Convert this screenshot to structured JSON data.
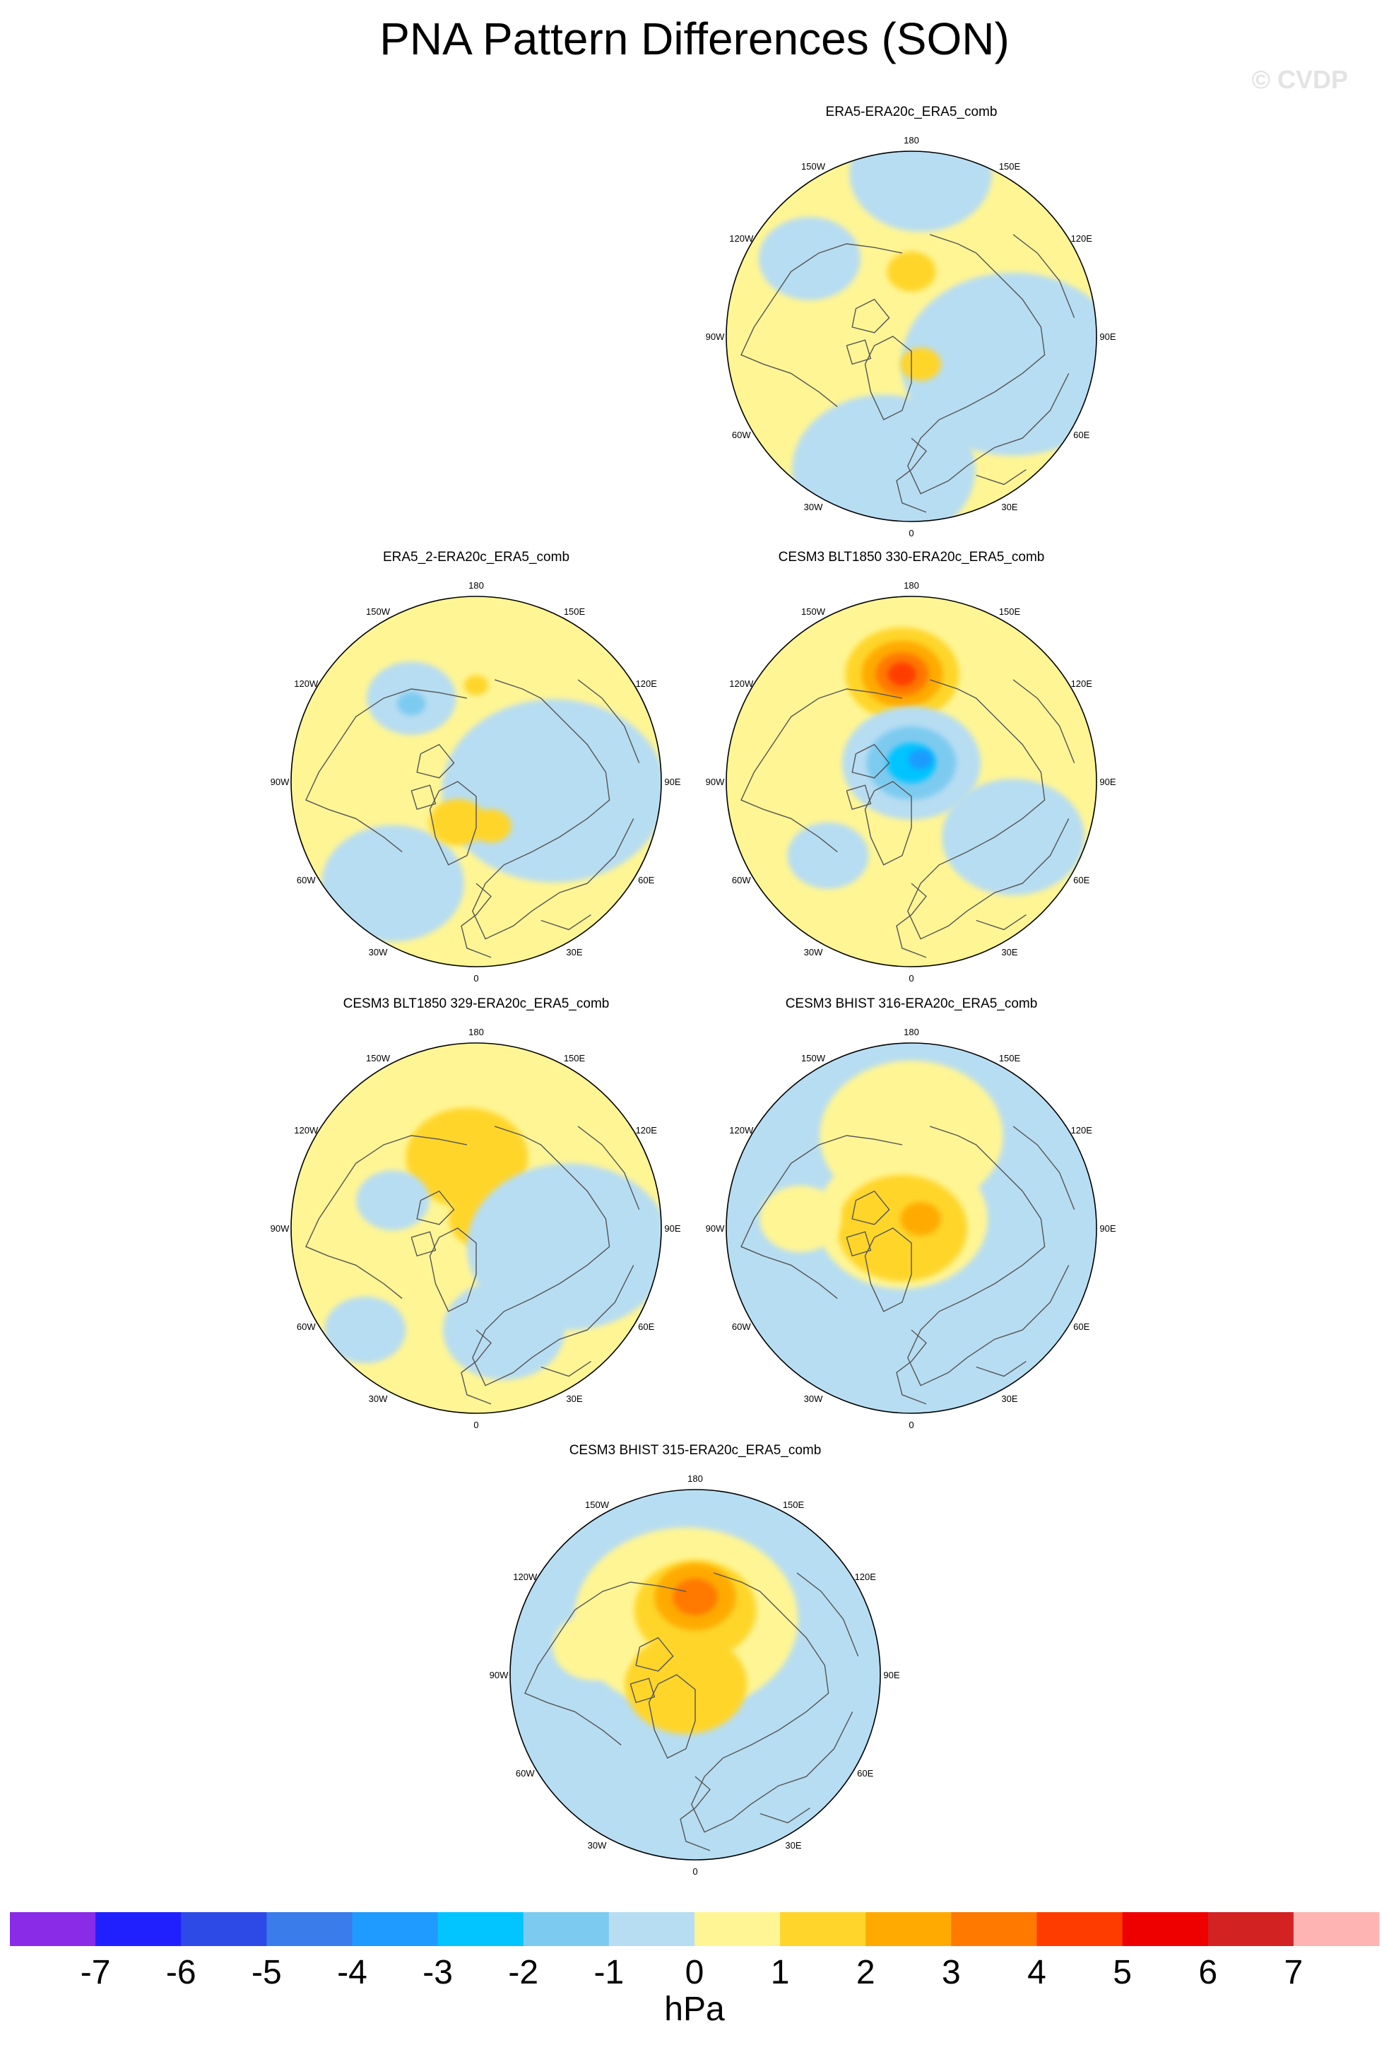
{
  "title": "PNA Pattern Differences (SON)",
  "watermark": "© CVDP",
  "colorbar": {
    "labels": [
      "-7",
      "-6",
      "-5",
      "-4",
      "-3",
      "-2",
      "-1",
      "0",
      "1",
      "2",
      "3",
      "4",
      "5",
      "6",
      "7"
    ],
    "units": "hPa",
    "colors": [
      "#8a2be8",
      "#2020ff",
      "#2d4ae6",
      "#3a7cea",
      "#1f9bff",
      "#02c4ff",
      "#7dcaf0",
      "#b7ddf2",
      "#fff594",
      "#ffd52c",
      "#ffaa00",
      "#ff7800",
      "#ff3c00",
      "#ee0000",
      "#d22222",
      "#ffb4b4"
    ]
  },
  "panels": [
    {
      "title": "ERA5-ERA20c_ERA5_comb"
    },
    {
      "title": "ERA5_2-ERA20c_ERA5_comb"
    },
    {
      "title": "CESM3 BLT1850 330-ERA20c_ERA5_comb"
    },
    {
      "title": "CESM3 BLT1850 329-ERA20c_ERA5_comb"
    },
    {
      "title": "CESM3 BHIST 316-ERA20c_ERA5_comb"
    },
    {
      "title": "CESM3 BHIST 315-ERA20c_ERA5_comb"
    }
  ],
  "longitude_labels": [
    "180",
    "150E",
    "120E",
    "90E",
    "60E",
    "30E",
    "0",
    "30W",
    "60W",
    "90W",
    "120W",
    "150W"
  ],
  "map_fields": [
    {
      "base": "yellow",
      "blobs": [
        {
          "dx": 0.05,
          "dy": -0.88,
          "r": 0.35,
          "level": "-1"
        },
        {
          "dx": -0.55,
          "dy": -0.42,
          "r": 0.25,
          "level": "-1"
        },
        {
          "dx": 0.55,
          "dy": 0.15,
          "r": 0.55,
          "level": "-1"
        },
        {
          "dx": -0.15,
          "dy": 0.72,
          "r": 0.45,
          "level": "-1"
        },
        {
          "dx": 0.0,
          "dy": -0.35,
          "r": 0.12,
          "level": "1"
        },
        {
          "dx": 0.05,
          "dy": 0.15,
          "r": 0.1,
          "level": "1"
        }
      ]
    },
    {
      "base": "yellow",
      "blobs": [
        {
          "dx": -0.35,
          "dy": -0.45,
          "r": 0.22,
          "level": "-1"
        },
        {
          "dx": -0.35,
          "dy": -0.42,
          "r": 0.07,
          "level": "-2"
        },
        {
          "dx": 0.42,
          "dy": 0.05,
          "r": 0.55,
          "level": "-1"
        },
        {
          "dx": -0.45,
          "dy": 0.55,
          "r": 0.35,
          "level": "-1"
        },
        {
          "dx": 0.0,
          "dy": -0.52,
          "r": 0.06,
          "level": "1"
        },
        {
          "dx": -0.1,
          "dy": 0.22,
          "r": 0.14,
          "level": "1"
        },
        {
          "dx": 0.08,
          "dy": 0.24,
          "r": 0.1,
          "level": "1"
        }
      ]
    },
    {
      "base": "yellow",
      "blobs": [
        {
          "dx": -0.05,
          "dy": -0.58,
          "r": 0.28,
          "level": "1"
        },
        {
          "dx": -0.05,
          "dy": -0.58,
          "r": 0.2,
          "level": "2"
        },
        {
          "dx": -0.05,
          "dy": -0.58,
          "r": 0.13,
          "level": "3"
        },
        {
          "dx": -0.05,
          "dy": -0.58,
          "r": 0.07,
          "level": "4"
        },
        {
          "dx": 0.0,
          "dy": -0.1,
          "r": 0.34,
          "level": "-1"
        },
        {
          "dx": 0.0,
          "dy": -0.1,
          "r": 0.22,
          "level": "-2"
        },
        {
          "dx": 0.0,
          "dy": -0.1,
          "r": 0.12,
          "level": "-3"
        },
        {
          "dx": 0.05,
          "dy": -0.12,
          "r": 0.06,
          "level": "-4"
        },
        {
          "dx": 0.55,
          "dy": 0.3,
          "r": 0.35,
          "level": "-1"
        },
        {
          "dx": -0.45,
          "dy": 0.4,
          "r": 0.2,
          "level": "-1"
        }
      ]
    },
    {
      "base": "yellow",
      "blobs": [
        {
          "dx": -0.05,
          "dy": -0.38,
          "r": 0.3,
          "level": "1"
        },
        {
          "dx": 0.05,
          "dy": -0.05,
          "r": 0.18,
          "level": "1"
        },
        {
          "dx": 0.5,
          "dy": 0.1,
          "r": 0.5,
          "level": "-1"
        },
        {
          "dx": -0.45,
          "dy": -0.15,
          "r": 0.18,
          "level": "-1"
        },
        {
          "dx": 0.15,
          "dy": 0.55,
          "r": 0.3,
          "level": "-1"
        },
        {
          "dx": -0.6,
          "dy": 0.55,
          "r": 0.2,
          "level": "-1"
        }
      ]
    },
    {
      "base": "lightblue",
      "blobs": [
        {
          "dx": 0.0,
          "dy": -0.5,
          "r": 0.45,
          "level": "0"
        },
        {
          "dx": -0.05,
          "dy": -0.05,
          "r": 0.42,
          "level": "0"
        },
        {
          "dx": -0.05,
          "dy": 0.0,
          "r": 0.32,
          "level": "1"
        },
        {
          "dx": 0.05,
          "dy": -0.05,
          "r": 0.1,
          "level": "2"
        },
        {
          "dx": -0.6,
          "dy": -0.05,
          "r": 0.2,
          "level": "0"
        }
      ]
    },
    {
      "base": "lightblue",
      "blobs": [
        {
          "dx": -0.05,
          "dy": -0.3,
          "r": 0.55,
          "level": "0"
        },
        {
          "dx": 0.0,
          "dy": -0.35,
          "r": 0.3,
          "level": "1"
        },
        {
          "dx": -0.05,
          "dy": 0.05,
          "r": 0.3,
          "level": "1"
        },
        {
          "dx": 0.0,
          "dy": -0.42,
          "r": 0.2,
          "level": "2"
        },
        {
          "dx": 0.0,
          "dy": -0.42,
          "r": 0.11,
          "level": "3"
        },
        {
          "dx": -0.55,
          "dy": -0.15,
          "r": 0.2,
          "level": "0"
        }
      ]
    }
  ]
}
